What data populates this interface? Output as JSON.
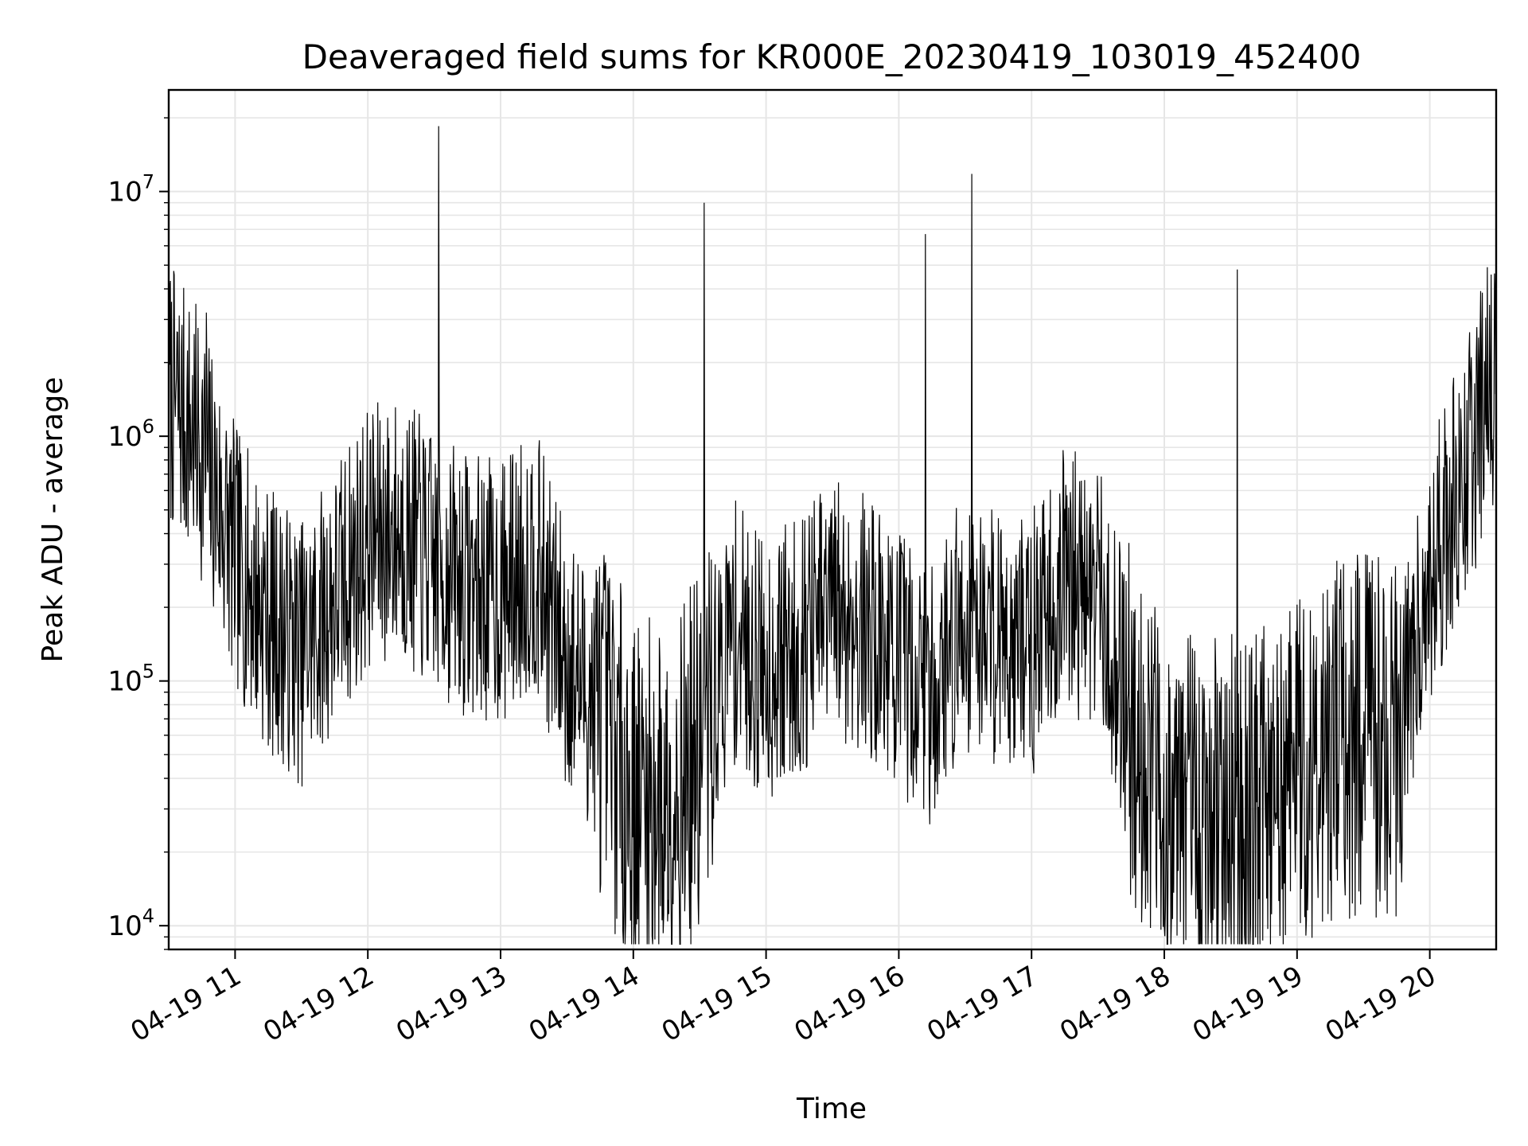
{
  "chart_data": {
    "type": "line",
    "title": "Deaveraged field sums for KR000E_20230419_103019_452400",
    "xlabel": "Time",
    "ylabel": "Peak ADU - average",
    "yscale": "log",
    "ylim": [
      8000,
      26000000
    ],
    "xlim": [
      "2023-04-19 10:30",
      "2023-04-19 20:30"
    ],
    "grid": true,
    "line_color": "#000000",
    "x_ticks": [
      "04-19 11",
      "04-19 12",
      "04-19 13",
      "04-19 14",
      "04-19 15",
      "04-19 16",
      "04-19 17",
      "04-19 18",
      "04-19 19",
      "04-19 20"
    ],
    "y_ticks": [
      {
        "base": "10",
        "exp": "4",
        "value": 10000
      },
      {
        "base": "10",
        "exp": "5",
        "value": 100000
      },
      {
        "base": "10",
        "exp": "6",
        "value": 1000000
      },
      {
        "base": "10",
        "exp": "7",
        "value": 10000000
      }
    ],
    "series": [
      {
        "x": [
          "2023-04-19 10:30",
          "2023-04-19 10:45",
          "2023-04-19 11:00",
          "2023-04-19 11:15",
          "2023-04-19 11:30",
          "2023-04-19 11:45",
          "2023-04-19 12:00",
          "2023-04-19 12:15",
          "2023-04-19 12:30",
          "2023-04-19 12:45",
          "2023-04-19 13:00",
          "2023-04-19 13:15",
          "2023-04-19 13:30",
          "2023-04-19 13:45",
          "2023-04-19 14:00",
          "2023-04-19 14:15",
          "2023-04-19 14:30",
          "2023-04-19 14:45",
          "2023-04-19 15:00",
          "2023-04-19 15:15",
          "2023-04-19 15:30",
          "2023-04-19 15:45",
          "2023-04-19 16:00",
          "2023-04-19 16:15",
          "2023-04-19 16:30",
          "2023-04-19 16:45",
          "2023-04-19 17:00",
          "2023-04-19 17:15",
          "2023-04-19 17:30",
          "2023-04-19 17:45",
          "2023-04-19 18:00",
          "2023-04-19 18:15",
          "2023-04-19 18:30",
          "2023-04-19 18:45",
          "2023-04-19 19:00",
          "2023-04-19 19:15",
          "2023-04-19 19:30",
          "2023-04-19 19:45",
          "2023-04-19 20:00",
          "2023-04-19 20:15",
          "2023-04-19 20:30"
        ],
        "values": [
          1500000,
          900000,
          320000,
          180000,
          130000,
          220000,
          380000,
          420000,
          300000,
          250000,
          230000,
          320000,
          120000,
          75000,
          33000,
          32000,
          50000,
          160000,
          110000,
          140000,
          200000,
          170000,
          120000,
          90000,
          180000,
          160000,
          140000,
          260000,
          220000,
          70000,
          32000,
          27000,
          28000,
          30000,
          45000,
          55000,
          60000,
          60000,
          280000,
          700000,
          1800000
        ],
        "spikes": [
          {
            "x": "2023-04-19 10:47",
            "value": 3200000
          },
          {
            "x": "2023-04-19 12:32",
            "value": 18500000
          },
          {
            "x": "2023-04-19 14:32",
            "value": 9000000
          },
          {
            "x": "2023-04-19 16:12",
            "value": 6700000
          },
          {
            "x": "2023-04-19 16:33",
            "value": 11800000
          },
          {
            "x": "2023-04-19 18:33",
            "value": 4800000
          },
          {
            "x": "2023-04-19 18:33",
            "value": 11000
          }
        ]
      }
    ]
  }
}
